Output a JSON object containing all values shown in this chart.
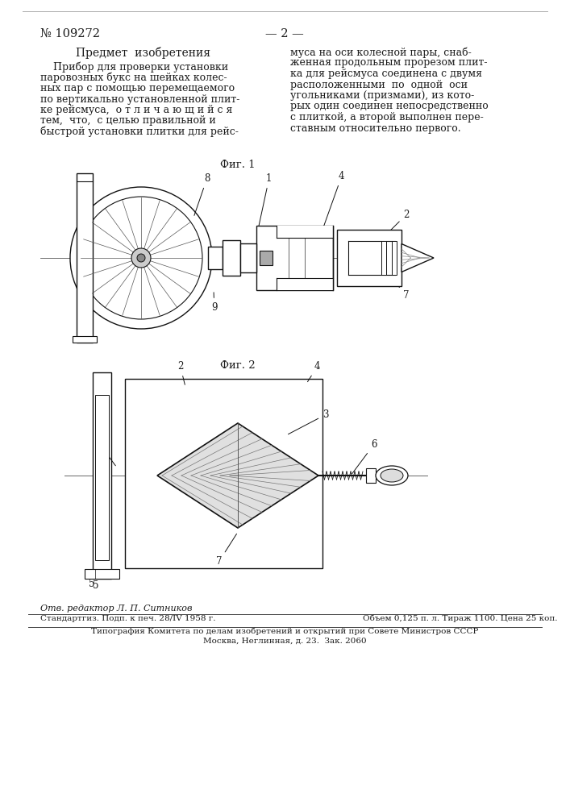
{
  "patent_number": "№ 109272",
  "page_number": "— 2 —",
  "section_title": "Предмет  изобретения",
  "left_text_lines": [
    "    Прибор для проверки установки",
    "паровозных букс на шейках колес-",
    "ных пар с помощью перемещаемого",
    "по вертикально установленной плит-",
    "ке рейсмуса,  о т л и ч а ю щ и й с я",
    "тем,  что,  с целью правильной и",
    "быстрой установки плитки для рейс-"
  ],
  "right_text_lines": [
    "муса на оси колесной пары, снаб-",
    "женная продольным прорезом плит-",
    "ка для рейсмуса соединена с двумя",
    "расположенными  по  одной  оси",
    "угольниками (призмами), из кото-",
    "рых один соединен непосредственно",
    "с плиткой, а второй выполнен пере-",
    "ставным относительно первого."
  ],
  "fig1_label": "Фиг. 1",
  "fig2_label": "Фиг. 2",
  "editor_line": "Отв. редактор Л. П. Ситников",
  "line1": "Стандартгиз. Подп. к печ. 28/IV 1958 г.",
  "line1b": "Объем 0,125 п. л. Тираж 1100. Цена 25 коп.",
  "line2": "Типография Комитета по делам изобретений и открытий при Совете Министров СССР",
  "line3": "Москва, Неглинная, д. 23.  Зак. 2060",
  "bg_color": "#ffffff",
  "text_color": "#1a1a1a",
  "dark_color": "#111111"
}
